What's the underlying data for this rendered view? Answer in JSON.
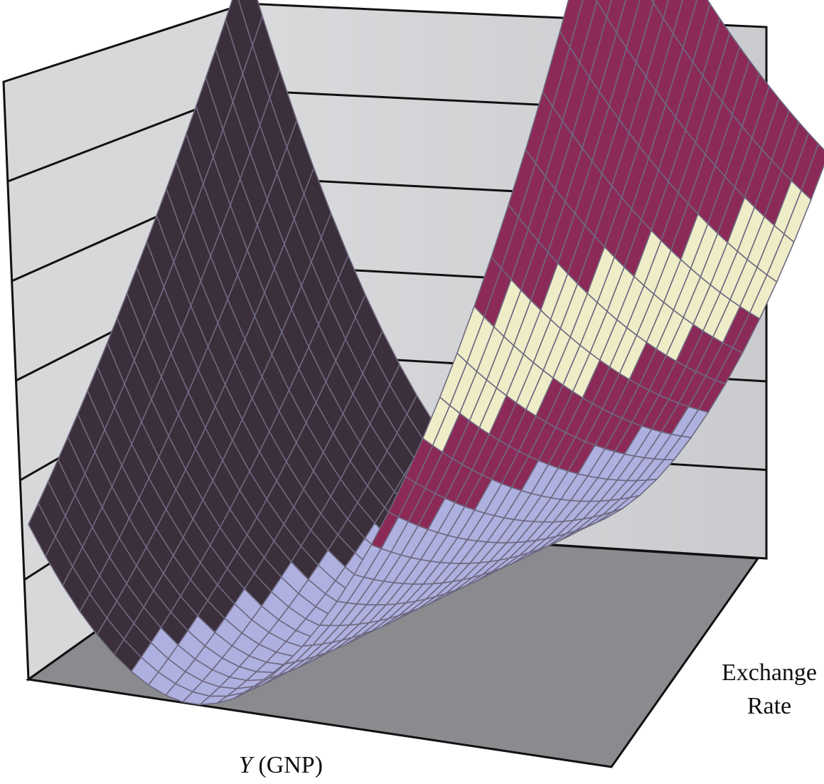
{
  "chart_data": {
    "type": "surface3d",
    "title": "",
    "xlabel": {
      "italic": "Y",
      "rest": " (GNP)"
    },
    "ylabel": [
      "Exchange",
      "Rate"
    ],
    "zlabel": "",
    "grid": true,
    "legend": "none",
    "z_gridline_count": 5,
    "surface_shape": "saddle-shaped valley, high at both left and right ends",
    "color_bands": [
      {
        "from": 0.0,
        "to": 0.38,
        "color": "#aeb0df"
      },
      {
        "from": 0.38,
        "to": 0.58,
        "color": "#8c2a57"
      },
      {
        "from": 0.58,
        "to": 0.85,
        "color": "#efedc8"
      },
      {
        "from": 0.85,
        "to": 1.0,
        "color": "#8c2a57"
      }
    ],
    "colors": {
      "back_wall": "#cfd1d3",
      "side_wall": "#d6d8da",
      "floor": "#8a8b8e",
      "edge": "#111111",
      "mesh_line": "#6e6880",
      "shadow_side": "#3a2f3a"
    }
  }
}
